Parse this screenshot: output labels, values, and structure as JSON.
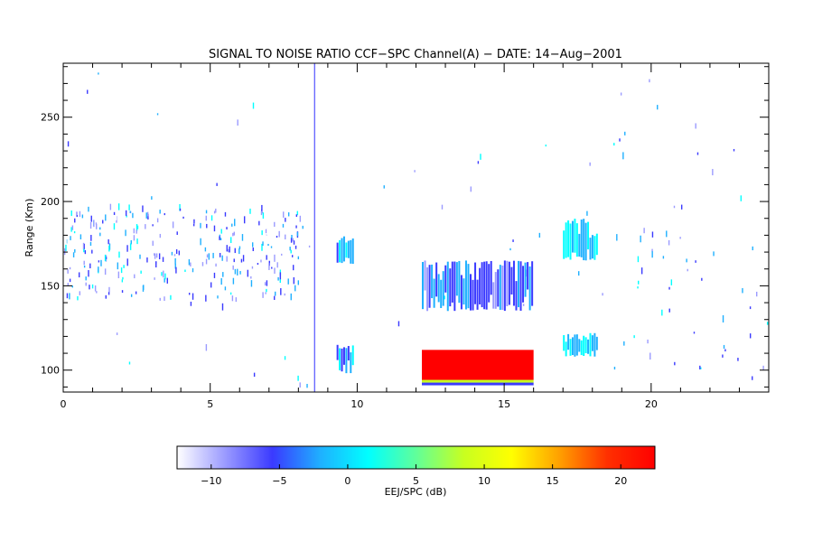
{
  "chart_data": {
    "type": "heatmap",
    "title": "SIGNAL TO NOISE RATIO CCF−SPC Channel(A) − DATE: 14−Aug−2001",
    "xlabel": "",
    "ylabel": "Range (Km)",
    "xlim": [
      0,
      24
    ],
    "ylim": [
      87,
      282
    ],
    "x_ticks": [
      "0",
      "5",
      "10",
      "15",
      "20"
    ],
    "x_tick_values": [
      0,
      5,
      10,
      15,
      20
    ],
    "y_ticks": [
      "100",
      "150",
      "200",
      "250"
    ],
    "y_tick_values": [
      100,
      150,
      200,
      250
    ],
    "grid": false,
    "vertical_marker_x": 8.55,
    "colorbar": {
      "label": "EEJ/SPC (dB)",
      "range": [
        -12.5,
        22.5
      ],
      "ticks": [
        "−10",
        "−5",
        "0",
        "5",
        "10",
        "15",
        "20"
      ],
      "tick_values": [
        -10,
        -5,
        0,
        5,
        10,
        15,
        20
      ],
      "colors": [
        "#ffffff",
        "#9b9bff",
        "#3a3aff",
        "#1fb0ff",
        "#00ffff",
        "#60ff9a",
        "#c8ff20",
        "#ffff00",
        "#ffa000",
        "#ff3000",
        "#ff0000"
      ]
    },
    "regions": [
      {
        "name": "echo-9.5h-upper",
        "x": [
          9.3,
          9.9
        ],
        "y": [
          163,
          180
        ],
        "snr_db": -2
      },
      {
        "name": "echo-9.5h-lower",
        "x": [
          9.3,
          9.9
        ],
        "y": [
          98,
          115
        ],
        "snr_db": -3
      },
      {
        "name": "echo-12-16h-upper",
        "x": [
          12.2,
          16.0
        ],
        "y": [
          135,
          165
        ],
        "snr_db": -5
      },
      {
        "name": "echo-12-16h-eej",
        "x": [
          12.2,
          16.0
        ],
        "y": [
          91,
          112
        ],
        "snr_db": 22
      },
      {
        "name": "echo-17.5h-upper",
        "x": [
          17.0,
          18.2
        ],
        "y": [
          165,
          190
        ],
        "snr_db": 0
      },
      {
        "name": "echo-17.5h-lower",
        "x": [
          17.0,
          18.2
        ],
        "y": [
          108,
          122
        ],
        "snr_db": -1
      }
    ]
  }
}
